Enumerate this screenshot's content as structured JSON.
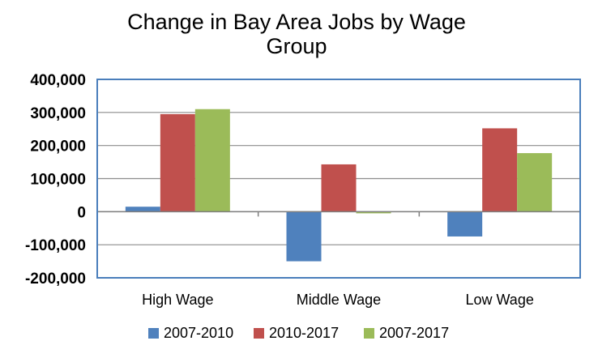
{
  "chart_data": {
    "type": "bar",
    "title": "Change in Bay Area Jobs by Wage Group",
    "title_lines": [
      "Change in Bay Area Jobs by Wage",
      "Group"
    ],
    "xlabel": "",
    "ylabel": "",
    "categories": [
      "High Wage",
      "Middle Wage",
      "Low Wage"
    ],
    "series": [
      {
        "name": "2007-2010",
        "color": "#4f81bd",
        "values": [
          15000,
          -150000,
          -75000
        ]
      },
      {
        "name": "2010-2017",
        "color": "#c0504d",
        "values": [
          295000,
          143000,
          252000
        ]
      },
      {
        "name": "2007-2017",
        "color": "#9bbb59",
        "values": [
          310000,
          -5000,
          177000
        ]
      }
    ],
    "ylim": [
      -200000,
      400000
    ],
    "yticks": [
      400000,
      300000,
      200000,
      100000,
      0,
      -100000,
      -200000
    ],
    "ytick_labels": [
      "400,000",
      "300,000",
      "200,000",
      "100,000",
      "0",
      "-100,000",
      "-200,000"
    ],
    "grid": true,
    "legend_position": "bottom"
  }
}
